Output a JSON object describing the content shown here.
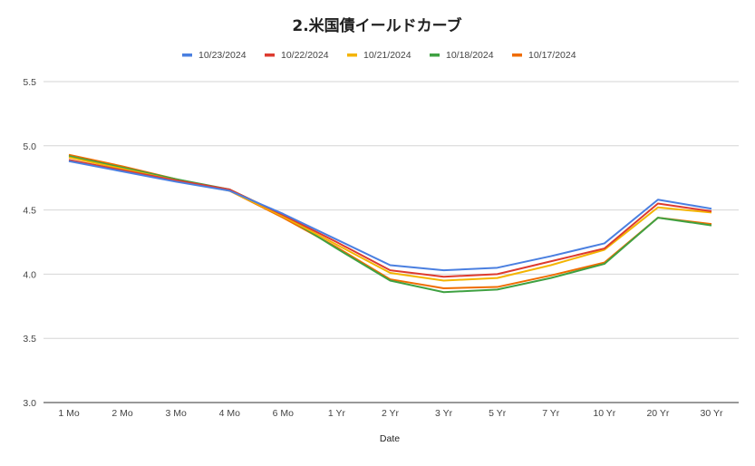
{
  "chart_data": {
    "type": "line",
    "title": "2.米国債イールドカーブ",
    "xlabel": "Date",
    "ylabel": "",
    "ylim": [
      3.0,
      5.5
    ],
    "yticks": [
      "3.0",
      "3.5",
      "4.0",
      "4.5",
      "5.0",
      "5.5"
    ],
    "grid": true,
    "legend_position": "top",
    "categories": [
      "1 Mo",
      "2 Mo",
      "3 Mo",
      "4 Mo",
      "6 Mo",
      "1 Yr",
      "2 Yr",
      "3 Yr",
      "5 Yr",
      "7 Yr",
      "10 Yr",
      "20 Yr",
      "30 Yr"
    ],
    "series": [
      {
        "name": "10/23/2024",
        "color": "#4a7fe0",
        "values": [
          4.88,
          4.8,
          4.72,
          4.65,
          4.47,
          4.27,
          4.07,
          4.03,
          4.05,
          4.14,
          4.24,
          4.58,
          4.51
        ]
      },
      {
        "name": "10/22/2024",
        "color": "#dd3b2f",
        "values": [
          4.89,
          4.81,
          4.73,
          4.66,
          4.46,
          4.25,
          4.03,
          3.98,
          4.0,
          4.1,
          4.2,
          4.55,
          4.49
        ]
      },
      {
        "name": "10/21/2024",
        "color": "#f4b400",
        "values": [
          4.91,
          4.82,
          4.73,
          4.65,
          4.45,
          4.23,
          4.01,
          3.95,
          3.97,
          4.07,
          4.19,
          4.52,
          4.48
        ]
      },
      {
        "name": "10/18/2024",
        "color": "#3fa142",
        "values": [
          4.92,
          4.83,
          4.74,
          4.66,
          4.46,
          4.2,
          3.95,
          3.86,
          3.88,
          3.97,
          4.08,
          4.44,
          4.38
        ]
      },
      {
        "name": "10/17/2024",
        "color": "#ef6c00",
        "values": [
          4.93,
          4.84,
          4.74,
          4.65,
          4.44,
          4.21,
          3.96,
          3.89,
          3.9,
          3.99,
          4.09,
          4.44,
          4.39
        ]
      }
    ]
  }
}
